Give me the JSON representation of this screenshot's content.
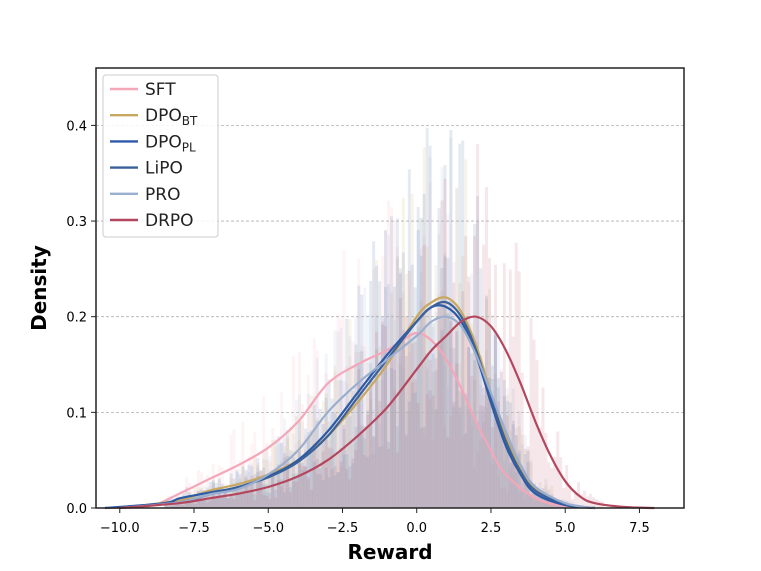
{
  "chart_data": {
    "type": "line",
    "title": "",
    "xlabel": "Reward",
    "ylabel": "Density",
    "xlim": [
      -10.8,
      9.0
    ],
    "ylim": [
      0,
      0.46
    ],
    "xticks": [
      -10.0,
      -7.5,
      -5.0,
      -2.5,
      0.0,
      2.5,
      5.0,
      7.5
    ],
    "xtick_labels": [
      "−10.0",
      "−7.5",
      "−5.0",
      "−2.5",
      "0.0",
      "2.5",
      "5.0",
      "7.5"
    ],
    "yticks": [
      0.0,
      0.1,
      0.2,
      0.3,
      0.4
    ],
    "ytick_labels": [
      "0.0",
      "0.1",
      "0.2",
      "0.3",
      "0.4"
    ],
    "grid": "horizontal dashed",
    "legend_position": "top-left",
    "histogram_overlay": true,
    "series": [
      {
        "name": "SFT",
        "sub": "",
        "color": "#f4a7b9",
        "x": [
          -10.5,
          -9,
          -8,
          -7,
          -6,
          -5,
          -4,
          -3,
          -2,
          -1,
          -0.5,
          0,
          0.5,
          1,
          1.5,
          2,
          2.5,
          3,
          4,
          5,
          6
        ],
        "values": [
          0.0,
          0.002,
          0.015,
          0.03,
          0.045,
          0.063,
          0.09,
          0.13,
          0.15,
          0.165,
          0.175,
          0.183,
          0.175,
          0.155,
          0.125,
          0.09,
          0.06,
          0.035,
          0.01,
          0.002,
          0.0
        ]
      },
      {
        "name": "DPO",
        "sub": "BT",
        "color": "#c8a860",
        "x": [
          -10,
          -8,
          -7,
          -6,
          -5,
          -4,
          -3,
          -2,
          -1,
          0,
          0.5,
          1,
          1.5,
          2,
          2.5,
          3,
          3.5,
          4,
          5,
          6
        ],
        "values": [
          0.0,
          0.008,
          0.018,
          0.025,
          0.035,
          0.05,
          0.075,
          0.11,
          0.15,
          0.2,
          0.215,
          0.22,
          0.205,
          0.17,
          0.12,
          0.075,
          0.04,
          0.02,
          0.004,
          0.0
        ]
      },
      {
        "name": "DPO",
        "sub": "PL",
        "color": "#2d5aa8",
        "x": [
          -10.5,
          -8.5,
          -8,
          -7,
          -6,
          -5,
          -4,
          -3,
          -2,
          -1,
          0,
          0.5,
          1,
          1.5,
          2,
          2.5,
          3,
          3.5,
          4,
          5,
          6
        ],
        "values": [
          0.0,
          0.005,
          0.01,
          0.016,
          0.022,
          0.033,
          0.05,
          0.08,
          0.12,
          0.16,
          0.195,
          0.21,
          0.21,
          0.195,
          0.16,
          0.11,
          0.065,
          0.035,
          0.015,
          0.003,
          0.0
        ]
      },
      {
        "name": "LiPO",
        "sub": "",
        "color": "#3a6199",
        "x": [
          -10,
          -8,
          -7,
          -6,
          -5,
          -4,
          -3,
          -2,
          -1,
          0,
          0.5,
          1,
          1.5,
          2,
          2.5,
          3,
          3.5,
          4,
          5,
          6
        ],
        "values": [
          0.0,
          0.006,
          0.014,
          0.022,
          0.032,
          0.048,
          0.075,
          0.115,
          0.155,
          0.195,
          0.21,
          0.215,
          0.2,
          0.165,
          0.115,
          0.07,
          0.038,
          0.018,
          0.004,
          0.0
        ]
      },
      {
        "name": "PRO",
        "sub": "",
        "color": "#9aaecf",
        "x": [
          -10,
          -8,
          -7,
          -6,
          -5,
          -4,
          -3,
          -2,
          -1,
          0,
          0.5,
          1,
          1.5,
          2,
          2.5,
          3,
          3.5,
          4,
          5,
          6
        ],
        "values": [
          0.0,
          0.006,
          0.014,
          0.02,
          0.035,
          0.06,
          0.1,
          0.13,
          0.155,
          0.18,
          0.195,
          0.2,
          0.19,
          0.16,
          0.12,
          0.08,
          0.045,
          0.022,
          0.005,
          0.0
        ]
      },
      {
        "name": "DRPO",
        "sub": "",
        "color": "#b3475e",
        "x": [
          -10,
          -8,
          -7,
          -6,
          -5,
          -4,
          -3,
          -2,
          -1,
          0,
          0.5,
          1,
          1.5,
          2,
          2.5,
          3,
          3.5,
          4,
          4.5,
          5,
          5.5,
          6,
          7,
          8
        ],
        "values": [
          0.0,
          0.005,
          0.01,
          0.015,
          0.022,
          0.033,
          0.05,
          0.075,
          0.105,
          0.145,
          0.165,
          0.18,
          0.195,
          0.2,
          0.19,
          0.165,
          0.13,
          0.09,
          0.055,
          0.028,
          0.012,
          0.005,
          0.001,
          0.0
        ]
      }
    ]
  }
}
